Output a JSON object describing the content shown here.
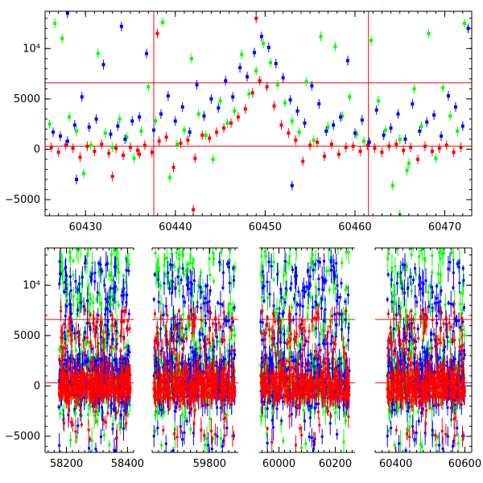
{
  "colors": {
    "red": "#ff0000",
    "green": "#00ff00",
    "blue": "#0000ff",
    "frame": "#000000"
  },
  "chart_data": [
    {
      "type": "scatter",
      "title": "",
      "xlabel": "",
      "ylabel": "",
      "xlim": [
        60425.5,
        60473
      ],
      "ylim": [
        -6600,
        13700
      ],
      "yticks": [
        {
          "value": -5000,
          "label": "−5000"
        },
        {
          "value": 0,
          "label": "0"
        },
        {
          "value": 5000,
          "label": "5000"
        },
        {
          "value": 10000,
          "label": "10⁴"
        }
      ],
      "xticks": [
        {
          "value": 60430,
          "label": "60430"
        },
        {
          "value": 60440,
          "label": "60440"
        },
        {
          "value": 60450,
          "label": "60450"
        },
        {
          "value": 60460,
          "label": "60460"
        },
        {
          "value": 60470,
          "label": "60470"
        }
      ],
      "hlines": [
        6600,
        300
      ],
      "vlines": [
        60437.6,
        60461.5
      ],
      "series": [
        {
          "color": "red",
          "points": [
            [
              60426.2,
              200
            ],
            [
              60427.0,
              -300
            ],
            [
              60427.8,
              400
            ],
            [
              60428.6,
              100
            ],
            [
              60429.4,
              -800
            ],
            [
              60430.2,
              300
            ],
            [
              60431.0,
              -200
            ],
            [
              60431.8,
              500
            ],
            [
              60432.6,
              -400
            ],
            [
              60433.4,
              100
            ],
            [
              60434.2,
              -600
            ],
            [
              60435.0,
              200
            ],
            [
              60435.8,
              -100
            ],
            [
              60436.6,
              400
            ],
            [
              60437.4,
              -300
            ],
            [
              60438.2,
              800
            ],
            [
              60439.0,
              1200
            ],
            [
              60439.8,
              -1800
            ],
            [
              60440.6,
              600
            ],
            [
              60441.4,
              900
            ],
            [
              60442.2,
              -900
            ],
            [
              60443.0,
              1400
            ],
            [
              60443.8,
              1100
            ],
            [
              60444.6,
              1700
            ],
            [
              60445.4,
              2100
            ],
            [
              60446.2,
              2600
            ],
            [
              60447.0,
              3200
            ],
            [
              60447.8,
              4000
            ],
            [
              60448.6,
              5600
            ],
            [
              60449.4,
              6800
            ],
            [
              60450.2,
              6200
            ],
            [
              60451.0,
              4300
            ],
            [
              60451.8,
              2400
            ],
            [
              60452.6,
              1600
            ],
            [
              60453.4,
              900
            ],
            [
              60454.2,
              -1200
            ],
            [
              60455.0,
              400
            ],
            [
              60455.8,
              700
            ],
            [
              60456.6,
              -700
            ],
            [
              60457.4,
              500
            ],
            [
              60458.2,
              -500
            ],
            [
              60459.0,
              200
            ],
            [
              60459.8,
              300
            ],
            [
              60460.6,
              -200
            ],
            [
              60461.4,
              400
            ],
            [
              60462.2,
              100
            ],
            [
              60463.0,
              -300
            ],
            [
              60463.8,
              300
            ],
            [
              60464.6,
              500
            ],
            [
              60465.4,
              -100
            ],
            [
              60466.2,
              200
            ],
            [
              60467.0,
              -1000
            ],
            [
              60467.8,
              300
            ],
            [
              60468.6,
              -200
            ],
            [
              60469.4,
              100
            ],
            [
              60470.2,
              400
            ],
            [
              60471.0,
              -300
            ],
            [
              60471.8,
              200
            ],
            [
              60438.0,
              11500
            ],
            [
              60449.0,
              13000
            ],
            [
              60442.0,
              -6000
            ],
            [
              60433.0,
              -2700
            ],
            [
              60436.0,
              -500
            ]
          ]
        },
        {
          "color": "green",
          "points": [
            [
              60426.0,
              2500
            ],
            [
              60426.6,
              12500
            ],
            [
              60427.4,
              11000
            ],
            [
              60428.2,
              3200
            ],
            [
              60429.0,
              1800
            ],
            [
              60429.8,
              -2400
            ],
            [
              60430.6,
              400
            ],
            [
              60431.4,
              9500
            ],
            [
              60432.2,
              1600
            ],
            [
              60433.0,
              200
            ],
            [
              60433.8,
              3000
            ],
            [
              60434.6,
              1200
            ],
            [
              60435.4,
              -900
            ],
            [
              60436.2,
              1800
            ],
            [
              60437.0,
              6200
            ],
            [
              60437.8,
              2800
            ],
            [
              60438.6,
              12600
            ],
            [
              60439.4,
              -2800
            ],
            [
              60440.2,
              500
            ],
            [
              60441.0,
              1900
            ],
            [
              60441.8,
              9000
            ],
            [
              60442.6,
              3500
            ],
            [
              60443.4,
              1400
            ],
            [
              60444.2,
              -1000
            ],
            [
              60445.0,
              4800
            ],
            [
              60445.8,
              2600
            ],
            [
              60446.6,
              3800
            ],
            [
              60447.4,
              9400
            ],
            [
              60448.2,
              5500
            ],
            [
              60449.0,
              7800
            ],
            [
              60449.8,
              10500
            ],
            [
              60450.6,
              8600
            ],
            [
              60451.4,
              6400
            ],
            [
              60452.2,
              4600
            ],
            [
              60453.0,
              2800
            ],
            [
              60453.8,
              1700
            ],
            [
              60454.6,
              6700
            ],
            [
              60455.4,
              900
            ],
            [
              60456.2,
              11200
            ],
            [
              60457.0,
              2200
            ],
            [
              60457.8,
              10200
            ],
            [
              60458.6,
              3300
            ],
            [
              60459.4,
              5200
            ],
            [
              60460.2,
              1500
            ],
            [
              60461.0,
              800
            ],
            [
              60461.8,
              10800
            ],
            [
              60462.6,
              4800
            ],
            [
              60463.4,
              1900
            ],
            [
              60464.2,
              -3600
            ],
            [
              60465.0,
              1000
            ],
            [
              60465.8,
              -2100
            ],
            [
              60466.6,
              6000
            ],
            [
              60467.4,
              2300
            ],
            [
              60468.2,
              11500
            ],
            [
              60469.0,
              -900
            ],
            [
              60469.8,
              6100
            ],
            [
              60470.6,
              3300
            ],
            [
              60471.4,
              1800
            ],
            [
              60472.2,
              12500
            ],
            [
              60465.0,
              -6500
            ],
            [
              60466.0,
              -1400
            ]
          ]
        },
        {
          "color": "blue",
          "points": [
            [
              60426.4,
              1700
            ],
            [
              60427.2,
              1300
            ],
            [
              60428.0,
              800
            ],
            [
              60428.8,
              2400
            ],
            [
              60429.6,
              5200
            ],
            [
              60430.4,
              2200
            ],
            [
              60431.2,
              3000
            ],
            [
              60432.0,
              8400
            ],
            [
              60432.8,
              1500
            ],
            [
              60433.6,
              2300
            ],
            [
              60434.4,
              1000
            ],
            [
              60435.2,
              2800
            ],
            [
              60436.0,
              3200
            ],
            [
              60436.8,
              9500
            ],
            [
              60437.6,
              1900
            ],
            [
              60438.4,
              3500
            ],
            [
              60439.2,
              5300
            ],
            [
              60440.0,
              2800
            ],
            [
              60440.8,
              4200
            ],
            [
              60441.6,
              1700
            ],
            [
              60442.4,
              6400
            ],
            [
              60443.2,
              3300
            ],
            [
              60444.0,
              5000
            ],
            [
              60444.8,
              4100
            ],
            [
              60445.6,
              6800
            ],
            [
              60446.4,
              5200
            ],
            [
              60447.2,
              8100
            ],
            [
              60448.0,
              7200
            ],
            [
              60448.8,
              9600
            ],
            [
              60449.6,
              11200
            ],
            [
              60450.4,
              10100
            ],
            [
              60451.2,
              8500
            ],
            [
              60452.0,
              7100
            ],
            [
              60452.8,
              4900
            ],
            [
              60453.6,
              3800
            ],
            [
              60454.4,
              2600
            ],
            [
              60455.2,
              6300
            ],
            [
              60456.0,
              4500
            ],
            [
              60456.8,
              1800
            ],
            [
              60457.6,
              2400
            ],
            [
              60458.4,
              3200
            ],
            [
              60459.2,
              8800
            ],
            [
              60460.0,
              1600
            ],
            [
              60460.8,
              2900
            ],
            [
              60461.6,
              700
            ],
            [
              60462.4,
              3900
            ],
            [
              60463.2,
              1400
            ],
            [
              60464.0,
              2100
            ],
            [
              60464.8,
              3500
            ],
            [
              60465.6,
              1000
            ],
            [
              60466.4,
              4500
            ],
            [
              60467.2,
              1800
            ],
            [
              60468.0,
              2700
            ],
            [
              60468.8,
              3400
            ],
            [
              60469.6,
              1300
            ],
            [
              60470.4,
              5300
            ],
            [
              60471.2,
              4200
            ],
            [
              60472.0,
              2300
            ],
            [
              60472.6,
              12000
            ],
            [
              60428.0,
              13500
            ],
            [
              60434.0,
              12200
            ],
            [
              60453.0,
              -3600
            ],
            [
              60429.0,
              -3000
            ]
          ]
        }
      ]
    },
    {
      "type": "scatter",
      "title": "",
      "xlabel": "",
      "ylabel": "",
      "ylim": [
        -6600,
        13700
      ],
      "yticks": [
        {
          "value": -5000,
          "label": "−5000"
        },
        {
          "value": 0,
          "label": "0"
        },
        {
          "value": 5000,
          "label": "5000"
        },
        {
          "value": 10000,
          "label": "10⁴"
        }
      ],
      "hlines": [
        6600,
        300
      ],
      "segments": [
        {
          "xlim": [
            58130,
            58420
          ],
          "xticks": [
            {
              "value": 58200,
              "label": "58200"
            },
            {
              "value": 58400,
              "label": "58400"
            }
          ],
          "data_range": [
            58175,
            58410
          ]
        },
        {
          "xlim": [
            59620,
            59890
          ],
          "xticks": [
            {
              "value": 59800,
              "label": "59800"
            }
          ],
          "data_range": [
            59625,
            59880
          ]
        },
        {
          "xlim": [
            59930,
            60270
          ],
          "xticks": [
            {
              "value": 60000,
              "label": "60000"
            },
            {
              "value": 60200,
              "label": "60200"
            }
          ],
          "data_range": [
            59935,
            60250
          ]
        },
        {
          "xlim": [
            60340,
            60620
          ],
          "xticks": [
            {
              "value": 60400,
              "label": "60400"
            },
            {
              "value": 60600,
              "label": "60600"
            }
          ],
          "data_range": [
            60375,
            60600
          ]
        }
      ]
    }
  ]
}
